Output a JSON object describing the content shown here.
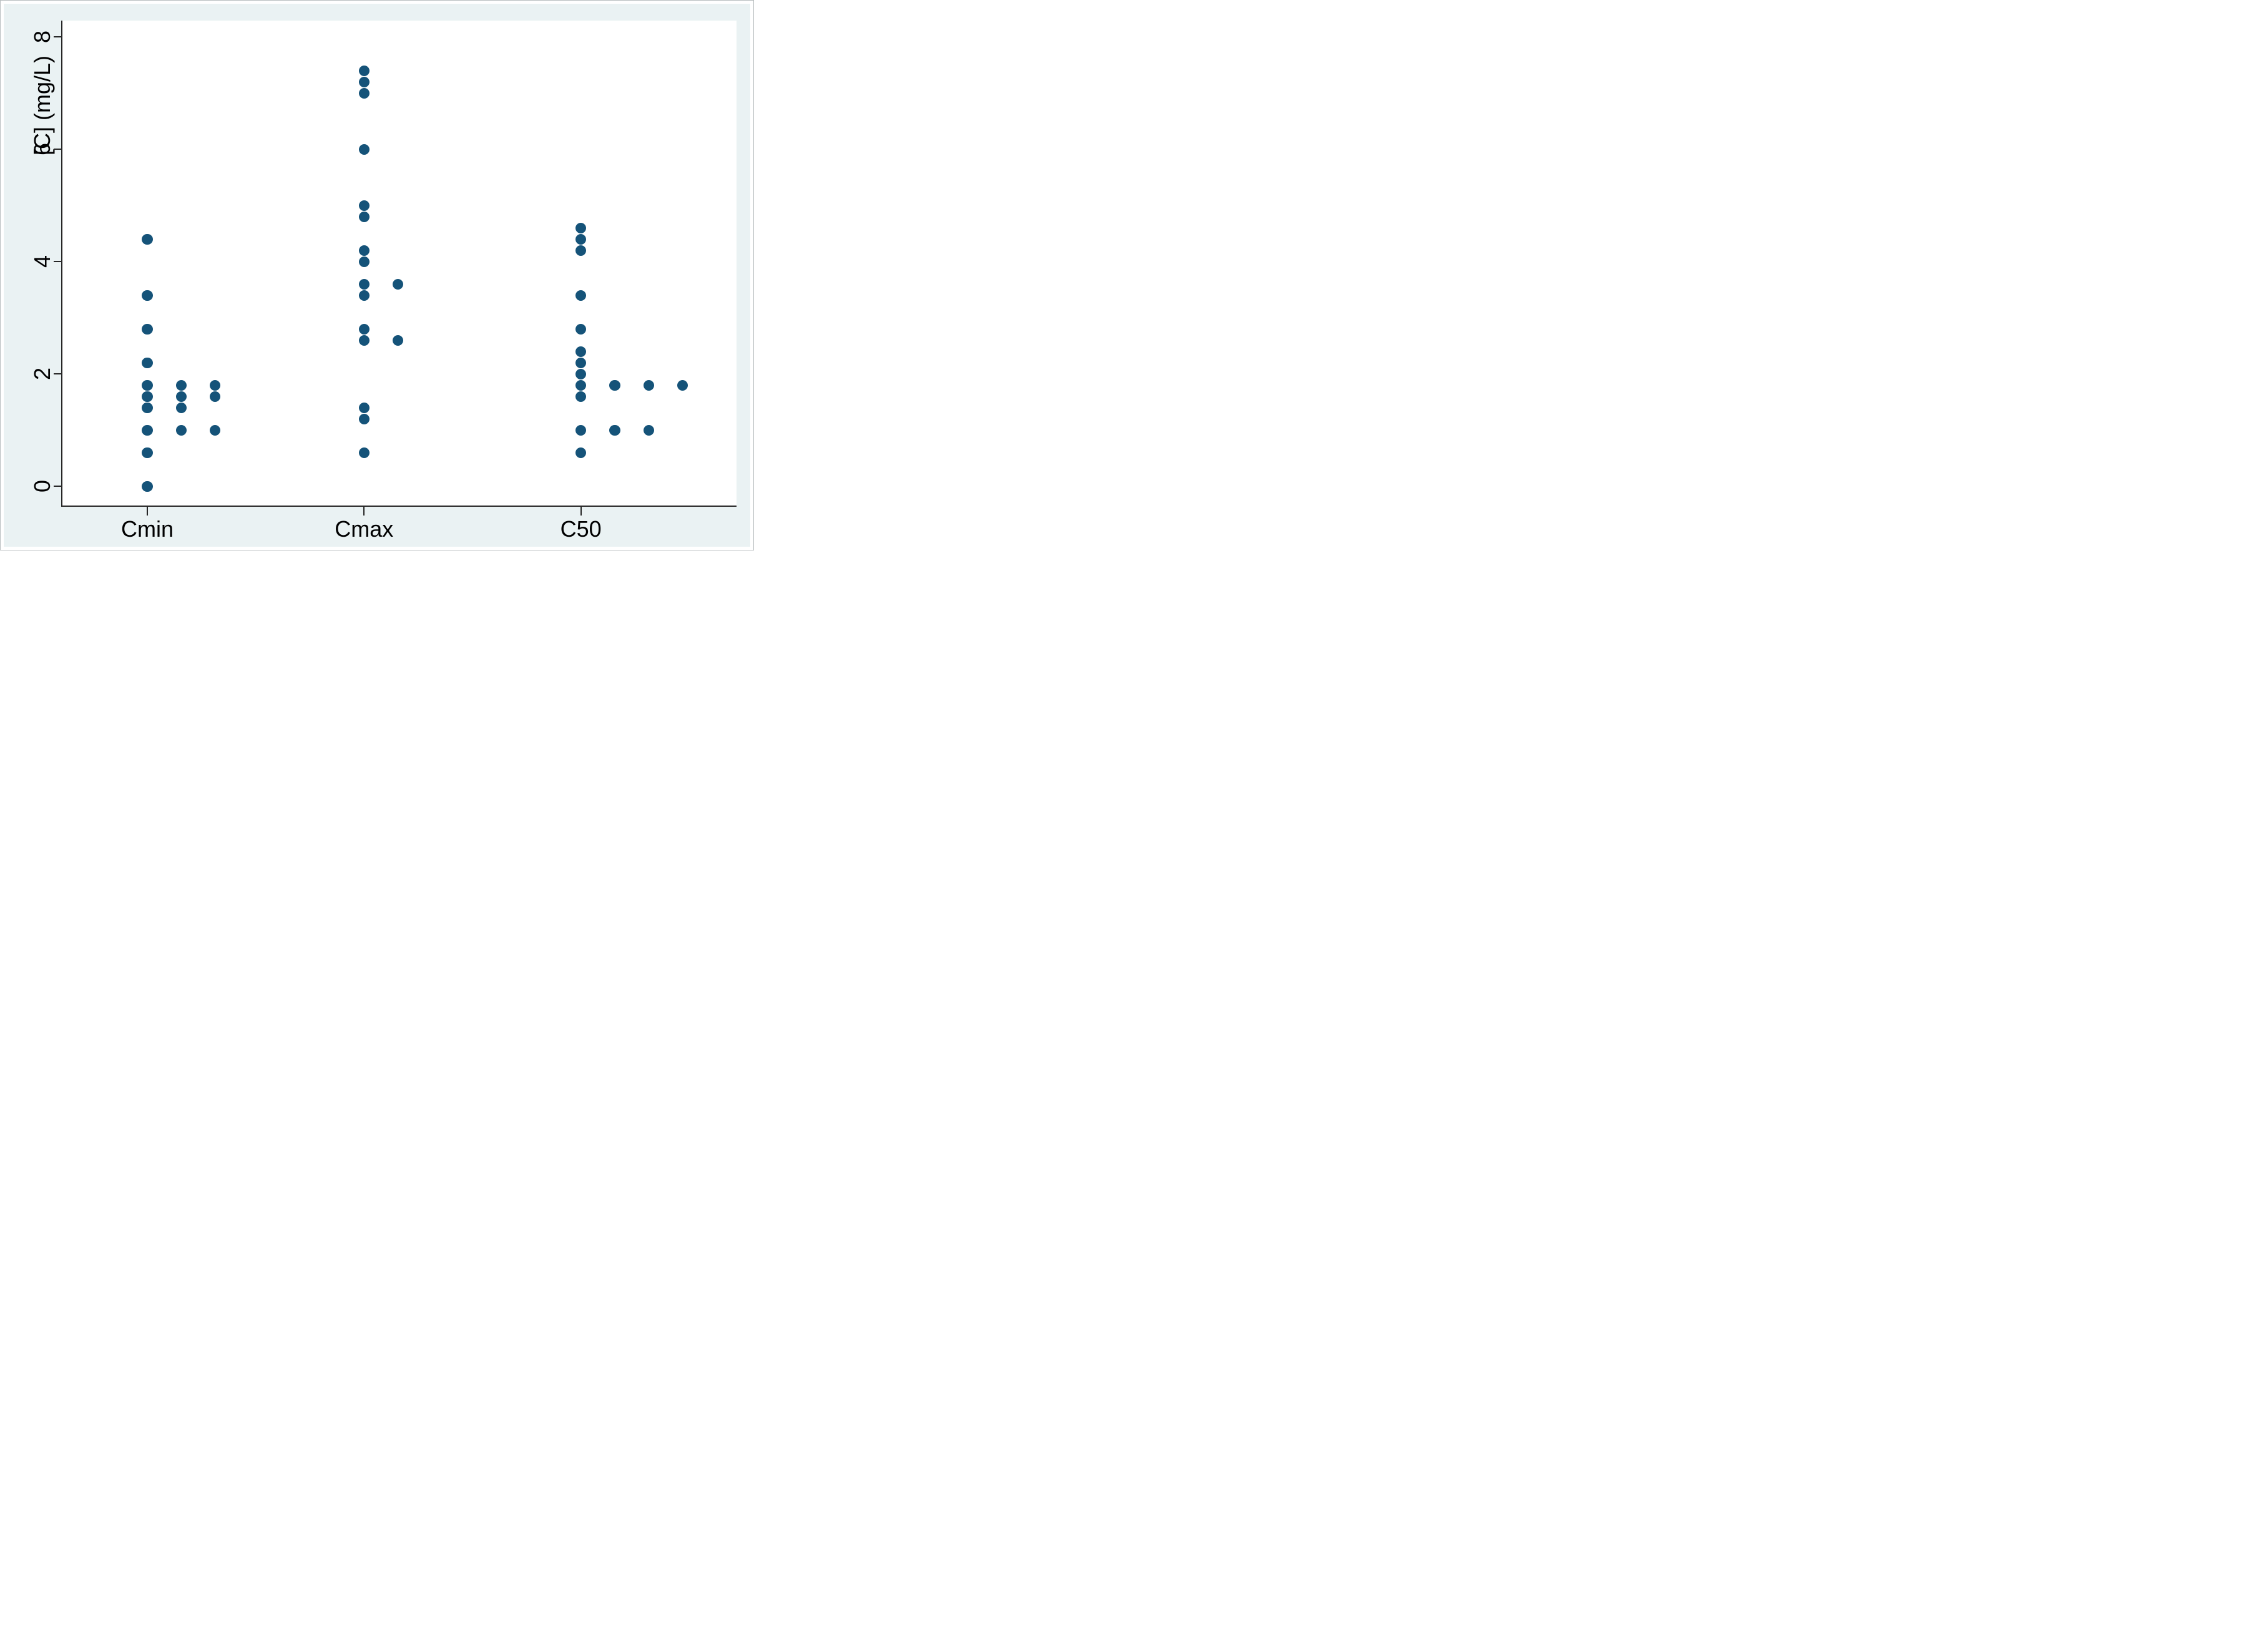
{
  "chart_data": {
    "type": "scatter",
    "title": "",
    "xlabel": "",
    "ylabel": "[C] (mg/L)",
    "ylim": [
      0,
      8.3
    ],
    "yticks": [
      0,
      2,
      4,
      6,
      8
    ],
    "categories": [
      "Cmin",
      "Cmax",
      "C50"
    ],
    "grid": false,
    "legend_position": "none",
    "marker": "filled-circle",
    "stacking_note": "tied values are offset horizontally to the right",
    "series": [
      {
        "name": "Cmin",
        "stacked_values": [
          [
            4.4,
            3.4,
            2.8,
            2.2,
            1.8,
            1.6,
            1.4,
            1.0,
            0.6,
            0.0
          ],
          [
            1.8,
            1.6,
            1.4,
            1.0
          ],
          [
            1.8,
            1.6,
            1.0
          ]
        ]
      },
      {
        "name": "Cmax",
        "stacked_values": [
          [
            7.4,
            7.2,
            7.0,
            6.0,
            5.0,
            4.8,
            4.2,
            4.0,
            3.6,
            3.4,
            2.8,
            2.6,
            1.4,
            1.2,
            0.6
          ],
          [
            3.6,
            2.6
          ]
        ]
      },
      {
        "name": "C50",
        "stacked_values": [
          [
            4.6,
            4.4,
            4.2,
            3.4,
            2.8,
            2.4,
            2.2,
            2.0,
            1.8,
            1.6,
            1.0,
            0.6
          ],
          [
            1.8,
            1.0
          ],
          [
            1.8,
            1.0
          ],
          [
            1.8
          ]
        ]
      }
    ],
    "colors": {
      "marker": "#155379",
      "figure_background": "#eaf2f3",
      "plot_background": "#ffffff",
      "axis": "#262626",
      "text": "#000000"
    }
  }
}
